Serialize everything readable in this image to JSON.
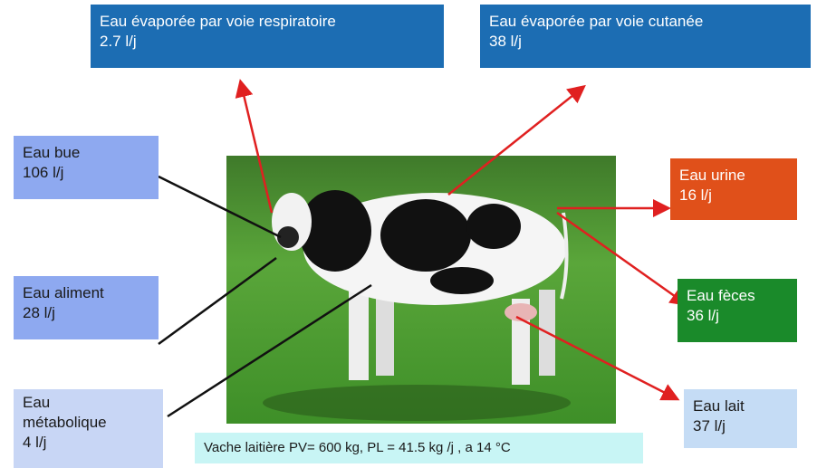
{
  "boxes": [
    {
      "label": "Eau évaporée par voie respiratoire",
      "value": "2.7 l/j"
    },
    {
      "label": "Eau évaporée par voie cutanée",
      "value": "38 l/j"
    },
    {
      "label": "Eau bue",
      "value": "106 l/j"
    },
    {
      "label": "Eau aliment",
      "value": "28 l/j"
    },
    {
      "label": "Eau métabolique",
      "value": "4 l/j"
    },
    {
      "label": "Eau urine",
      "value": "16 l/j"
    },
    {
      "label": "Eau fèces",
      "value": "36 l/j"
    },
    {
      "label": "Eau lait",
      "value": "37 l/j"
    }
  ],
  "caption": "Vache laitière PV= 600 kg, PL = 41.5 kg /j , a 14 °C"
}
